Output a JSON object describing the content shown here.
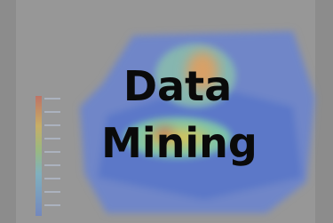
{
  "title_lines": [
    "Data",
    "Mining"
  ]
}
